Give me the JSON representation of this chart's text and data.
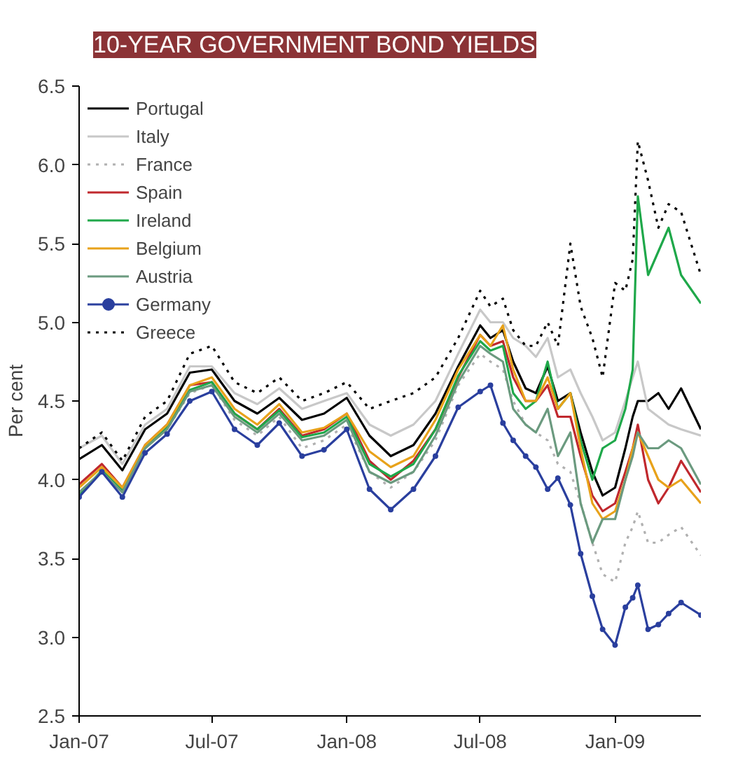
{
  "chart_data": {
    "type": "line",
    "title": "10-YEAR GOVERNMENT BOND YIELDS",
    "ylabel": "Per cent",
    "x": [
      "2007-01-01",
      "2007-02-01",
      "2007-03-01",
      "2007-04-01",
      "2007-05-01",
      "2007-06-01",
      "2007-07-01",
      "2007-08-01",
      "2007-09-01",
      "2007-10-01",
      "2007-11-01",
      "2007-12-01",
      "2008-01-01",
      "2008-02-01",
      "2008-03-01",
      "2008-04-01",
      "2008-05-01",
      "2008-06-01",
      "2008-07-01",
      "2008-07-15",
      "2008-08-01",
      "2008-08-15",
      "2008-09-01",
      "2008-09-15",
      "2008-10-01",
      "2008-10-15",
      "2008-11-01",
      "2008-11-15",
      "2008-12-01",
      "2008-12-15",
      "2009-01-01",
      "2009-01-15",
      "2009-01-25",
      "2009-02-01",
      "2009-02-15",
      "2009-03-01",
      "2009-03-15",
      "2009-04-01",
      "2009-04-28"
    ],
    "series": [
      {
        "name": "Portugal",
        "color": "#000000",
        "line_style": "solid",
        "values": [
          4.13,
          4.22,
          4.06,
          4.32,
          4.42,
          4.68,
          4.7,
          4.5,
          4.42,
          4.52,
          4.38,
          4.42,
          4.52,
          4.28,
          4.15,
          4.22,
          4.42,
          4.72,
          4.98,
          4.9,
          4.95,
          4.75,
          4.58,
          4.55,
          4.72,
          4.5,
          4.55,
          4.3,
          4.05,
          3.9,
          3.95,
          4.2,
          4.4,
          4.5,
          4.5,
          4.55,
          4.45,
          4.58,
          4.32
        ]
      },
      {
        "name": "Italy",
        "color": "#c8c8c8",
        "line_style": "solid",
        "values": [
          4.2,
          4.28,
          4.1,
          4.35,
          4.45,
          4.72,
          4.72,
          4.55,
          4.48,
          4.58,
          4.45,
          4.5,
          4.55,
          4.35,
          4.28,
          4.35,
          4.5,
          4.8,
          5.08,
          5.0,
          5.0,
          4.9,
          4.85,
          4.78,
          4.9,
          4.65,
          4.7,
          4.55,
          4.4,
          4.25,
          4.3,
          4.5,
          4.65,
          4.75,
          4.45,
          4.4,
          4.35,
          4.32,
          4.28
        ]
      },
      {
        "name": "France",
        "color": "#b0b0b0",
        "line_style": "dotted",
        "values": [
          3.92,
          4.05,
          3.92,
          4.2,
          4.32,
          4.55,
          4.6,
          4.38,
          4.28,
          4.4,
          4.2,
          4.25,
          4.35,
          4.05,
          3.95,
          4.05,
          4.25,
          4.6,
          4.8,
          4.75,
          4.7,
          4.5,
          4.35,
          4.3,
          4.25,
          4.1,
          4.05,
          3.85,
          3.6,
          3.4,
          3.35,
          3.6,
          3.7,
          3.8,
          3.6,
          3.6,
          3.65,
          3.7,
          3.52
        ]
      },
      {
        "name": "Spain",
        "color": "#c0282d",
        "line_style": "solid",
        "values": [
          3.97,
          4.1,
          3.95,
          4.22,
          4.35,
          4.6,
          4.62,
          4.42,
          4.32,
          4.45,
          4.28,
          4.32,
          4.42,
          4.12,
          4.0,
          4.12,
          4.32,
          4.65,
          4.92,
          4.85,
          4.88,
          4.65,
          4.5,
          4.5,
          4.6,
          4.4,
          4.4,
          4.15,
          3.9,
          3.8,
          3.85,
          4.05,
          4.2,
          4.35,
          4.0,
          3.85,
          3.95,
          4.12,
          3.92
        ]
      },
      {
        "name": "Ireland",
        "color": "#1fa84a",
        "line_style": "solid",
        "values": [
          3.9,
          4.06,
          3.93,
          4.2,
          4.33,
          4.57,
          4.62,
          4.42,
          4.32,
          4.44,
          4.27,
          4.3,
          4.4,
          4.1,
          4.02,
          4.1,
          4.32,
          4.66,
          4.88,
          4.82,
          4.85,
          4.55,
          4.45,
          4.5,
          4.75,
          4.45,
          4.55,
          4.25,
          4.0,
          4.2,
          4.25,
          4.45,
          4.7,
          5.8,
          5.3,
          5.45,
          5.6,
          5.3,
          5.12
        ]
      },
      {
        "name": "Belgium",
        "color": "#e8a21a",
        "line_style": "solid",
        "values": [
          3.95,
          4.08,
          3.95,
          4.22,
          4.35,
          4.6,
          4.65,
          4.45,
          4.35,
          4.48,
          4.3,
          4.33,
          4.42,
          4.18,
          4.08,
          4.15,
          4.38,
          4.7,
          4.92,
          4.85,
          4.98,
          4.7,
          4.5,
          4.5,
          4.65,
          4.45,
          4.55,
          4.2,
          3.85,
          3.75,
          3.8,
          4.0,
          4.2,
          4.3,
          4.15,
          4.0,
          3.95,
          4.0,
          3.85
        ]
      },
      {
        "name": "Austria",
        "color": "#6b9a7f",
        "line_style": "solid",
        "values": [
          3.92,
          4.05,
          3.92,
          4.2,
          4.32,
          4.56,
          4.6,
          4.4,
          4.3,
          4.42,
          4.25,
          4.28,
          4.38,
          4.05,
          3.98,
          4.05,
          4.28,
          4.62,
          4.85,
          4.8,
          4.75,
          4.45,
          4.35,
          4.3,
          4.45,
          4.15,
          4.3,
          3.85,
          3.6,
          3.75,
          3.75,
          4.0,
          4.15,
          4.3,
          4.2,
          4.2,
          4.25,
          4.2,
          3.97
        ]
      },
      {
        "name": "Germany",
        "color": "#2a3f9e",
        "line_style": "solid",
        "marker": "circle",
        "values": [
          3.89,
          4.05,
          3.89,
          4.17,
          4.29,
          4.5,
          4.56,
          4.32,
          4.22,
          4.36,
          4.15,
          4.19,
          4.32,
          3.94,
          3.81,
          3.94,
          4.15,
          4.46,
          4.56,
          4.6,
          4.36,
          4.25,
          4.15,
          4.08,
          3.94,
          4.01,
          3.84,
          3.53,
          3.26,
          3.05,
          2.95,
          3.19,
          3.25,
          3.33,
          3.05,
          3.08,
          3.15,
          3.22,
          3.14
        ]
      },
      {
        "name": "Greece",
        "color": "#000000",
        "line_style": "dotted",
        "values": [
          4.2,
          4.3,
          4.12,
          4.4,
          4.5,
          4.8,
          4.85,
          4.62,
          4.55,
          4.65,
          4.5,
          4.55,
          4.62,
          4.45,
          4.5,
          4.55,
          4.65,
          4.9,
          5.2,
          5.1,
          5.15,
          4.95,
          4.85,
          4.85,
          5.0,
          4.85,
          5.5,
          5.1,
          4.9,
          4.65,
          5.25,
          5.2,
          5.4,
          6.15,
          5.9,
          5.6,
          5.75,
          5.7,
          5.3
        ]
      }
    ],
    "xlim": [
      "2007-01-01",
      "2009-04-28"
    ],
    "xticks": [
      {
        "value": "2007-01-01",
        "label": "Jan-07"
      },
      {
        "value": "2007-07-01",
        "label": "Jul-07"
      },
      {
        "value": "2008-01-01",
        "label": "Jan-08"
      },
      {
        "value": "2008-07-01",
        "label": "Jul-08"
      },
      {
        "value": "2009-01-01",
        "label": "Jan-09"
      }
    ],
    "ylim": [
      2.5,
      6.5
    ],
    "yticks": [
      {
        "value": 2.5,
        "label": "2.5"
      },
      {
        "value": 3.0,
        "label": "3.0"
      },
      {
        "value": 3.5,
        "label": "3.5"
      },
      {
        "value": 4.0,
        "label": "4.0"
      },
      {
        "value": 4.5,
        "label": "4.5"
      },
      {
        "value": 5.0,
        "label": "5.0"
      },
      {
        "value": 5.5,
        "label": "5.5"
      },
      {
        "value": 6.0,
        "label": "6.0"
      },
      {
        "value": 6.5,
        "label": "6.5"
      }
    ],
    "grid": false,
    "legend": "top left"
  }
}
